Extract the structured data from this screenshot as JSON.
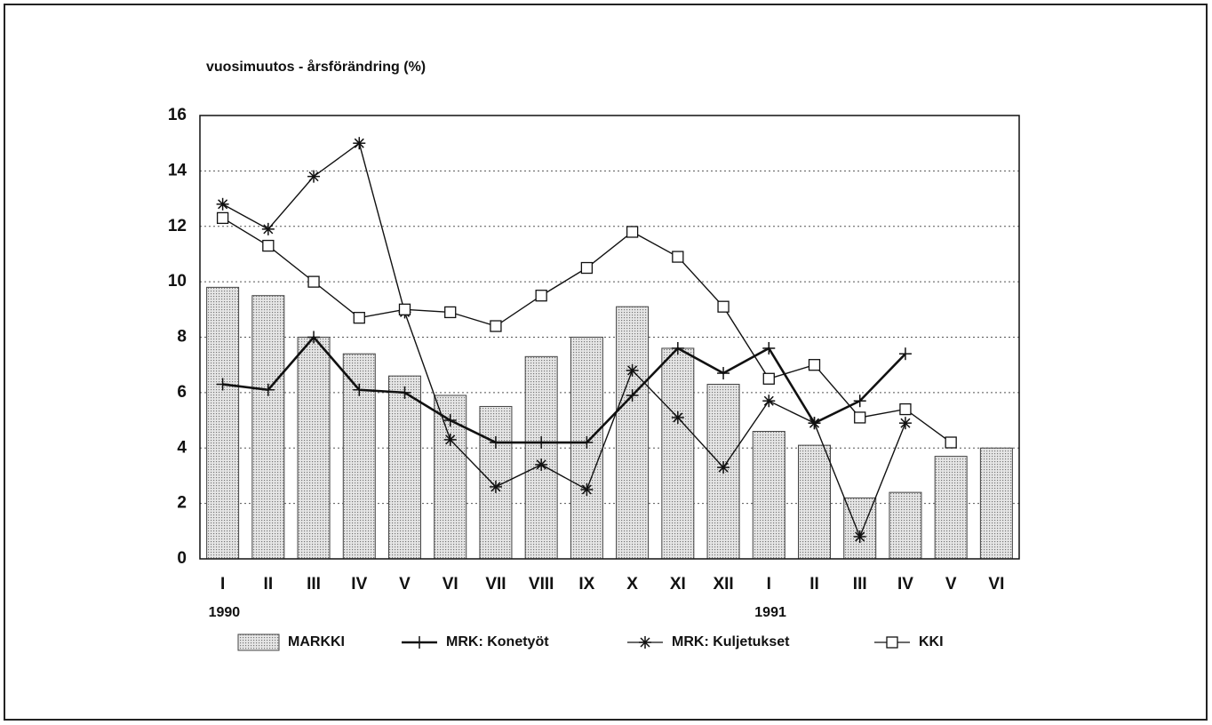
{
  "chart_data": {
    "type": "bar",
    "y_label": "vuosimuutos - årsförändring (%)",
    "categories": [
      "I",
      "II",
      "III",
      "IV",
      "V",
      "VI",
      "VII",
      "VIII",
      "IX",
      "X",
      "XI",
      "XII",
      "I",
      "II",
      "III",
      "IV",
      "V",
      "VI"
    ],
    "groups": [
      {
        "label": "1990",
        "start": 0
      },
      {
        "label": "1991",
        "start": 12
      }
    ],
    "ylim": [
      0,
      16
    ],
    "yticks": [
      0,
      2,
      4,
      6,
      8,
      10,
      12,
      14,
      16
    ],
    "grid": true,
    "legend": "bottom",
    "series": [
      {
        "name": "MARKKI",
        "type": "bar",
        "color": "#c8c8c8",
        "values": [
          9.8,
          9.5,
          8.0,
          7.4,
          6.6,
          5.9,
          5.5,
          7.3,
          8.0,
          9.1,
          7.6,
          6.3,
          4.6,
          4.1,
          2.2,
          2.4,
          3.7,
          4.0
        ]
      },
      {
        "name": "MRK: Konetyöt",
        "type": "line",
        "marker": "plus",
        "color": "#111111",
        "values": [
          6.3,
          6.1,
          8.0,
          6.1,
          6.0,
          5.0,
          4.2,
          4.2,
          4.2,
          5.9,
          7.6,
          6.7,
          7.6,
          4.9,
          5.7,
          7.4,
          null,
          null
        ]
      },
      {
        "name": "MRK: Kuljetukset",
        "type": "line",
        "marker": "asterisk",
        "color": "#111111",
        "values": [
          12.8,
          11.9,
          13.8,
          15.0,
          8.9,
          4.3,
          2.6,
          3.4,
          2.5,
          6.8,
          5.1,
          3.3,
          5.7,
          4.9,
          0.8,
          4.9,
          null,
          null
        ]
      },
      {
        "name": "KKI",
        "type": "line",
        "marker": "square",
        "color": "#111111",
        "values": [
          12.3,
          11.3,
          10.0,
          8.7,
          9.0,
          8.9,
          8.4,
          9.5,
          10.5,
          11.8,
          10.9,
          9.1,
          6.5,
          7.0,
          5.1,
          5.4,
          4.2,
          null
        ]
      }
    ]
  }
}
